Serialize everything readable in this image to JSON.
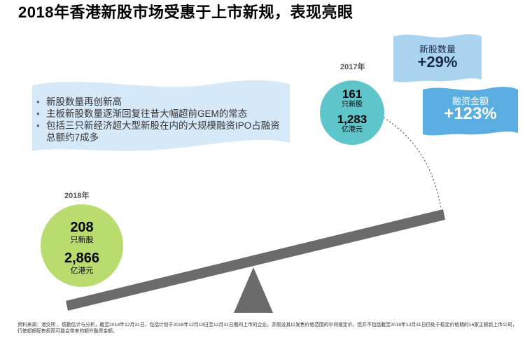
{
  "title": "2018年香港新股市场受惠于上市新规，表现亮眼",
  "bullets": [
    "新股数量再创新高",
    "主板新股数量逐渐回复往昔大幅超前GEM的常态",
    "包括三只新经济超大型新股在内的大规模融资IPO占融资总额约7成多"
  ],
  "y2017": {
    "year": "2017年",
    "count": "161",
    "count_unit": "只新股",
    "amount": "1,283",
    "amount_unit": "亿港元"
  },
  "y2018": {
    "year": "2018年",
    "count": "208",
    "count_unit": "只新股",
    "amount": "2,866",
    "amount_unit": "亿港元"
  },
  "growth": {
    "count_label": "新股数量",
    "count_value": "+29%",
    "amount_label": "融资金额",
    "amount_value": "+123%"
  },
  "footnote": "资料来源：港交所 、德勤估计与分析，截至2018年12月31日，包括计划于2018年12月19日至12月31日期间上市的企业，并假设其以发售价格范围的中间值定价。但并不包括截至2018年12月31日仍处于稳定价格期的16家主板新上市公司，行使超额配售权而可能会带来的额外融资金额。",
  "colors": {
    "circle_2017": "#5ec5cb",
    "circle_2018": "#b9dc6f",
    "flag_light": "#a9d3ee",
    "flag_dark": "#5aaee2",
    "banner": "#d6e9f8",
    "seesaw": "#6b6b6b"
  }
}
